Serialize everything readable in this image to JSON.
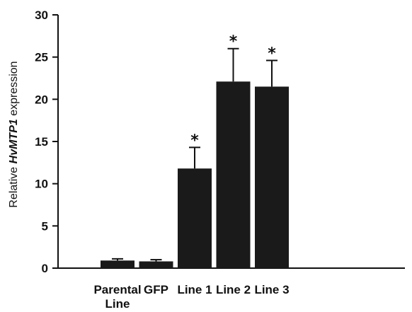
{
  "chart_data": {
    "type": "bar",
    "categories": [
      {
        "lines": [
          "Parental",
          "Line"
        ]
      },
      {
        "lines": [
          "GFP"
        ]
      },
      {
        "lines": [
          "Line 1"
        ]
      },
      {
        "lines": [
          "Line 2"
        ]
      },
      {
        "lines": [
          "Line 3"
        ]
      }
    ],
    "values": [
      0.9,
      0.8,
      11.8,
      22.1,
      21.5
    ],
    "errors": [
      0.2,
      0.2,
      2.5,
      3.9,
      3.1
    ],
    "annotations": [
      "",
      "",
      "*",
      "*",
      "*"
    ],
    "ylabel": {
      "prefix": "Relative ",
      "italic": "HvMTP1",
      "suffix": " expression"
    },
    "ylim": [
      0,
      30
    ],
    "yticks": [
      0,
      5,
      10,
      15,
      20,
      25,
      30
    ],
    "bar_color": "#1a1a1a",
    "grid": false
  }
}
